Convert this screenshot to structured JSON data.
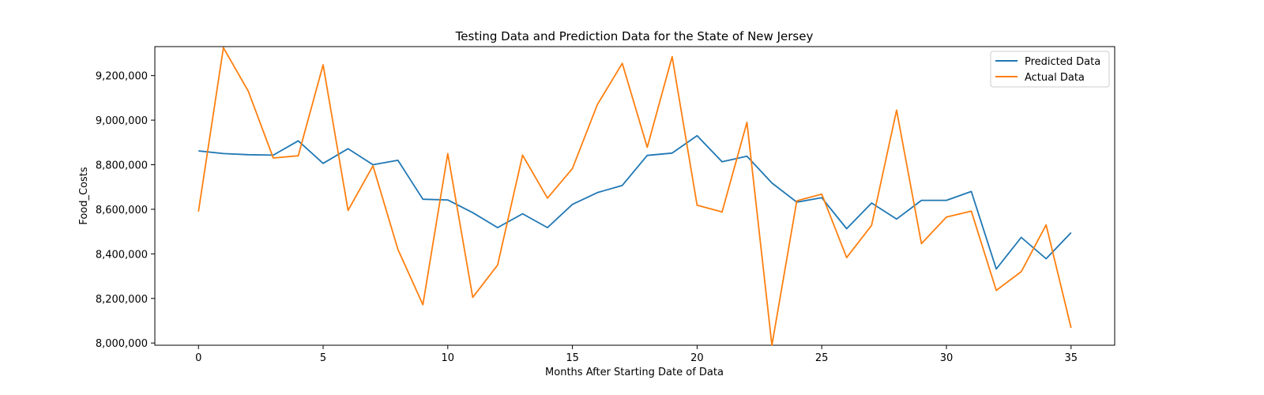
{
  "chart_data": {
    "type": "line",
    "title": "Testing Data and Prediction Data for the State of New Jersey",
    "xlabel": "Months After Starting Date of Data",
    "ylabel": "Food_Costs",
    "xlim": [
      -1.75,
      36.75
    ],
    "ylim": [
      7990000,
      9330000
    ],
    "x_ticks": [
      0,
      5,
      10,
      15,
      20,
      25,
      30,
      35
    ],
    "x_tick_labels": [
      "0",
      "5",
      "10",
      "15",
      "20",
      "25",
      "30",
      "35"
    ],
    "y_ticks": [
      8000000,
      8200000,
      8400000,
      8600000,
      8800000,
      9000000,
      9200000
    ],
    "y_tick_labels": [
      "8,000,000",
      "8,200,000",
      "8,400,000",
      "8,600,000",
      "8,800,000",
      "9,000,000",
      "9,200,000"
    ],
    "grid": false,
    "legend_position": "top-right",
    "x": [
      0,
      1,
      2,
      3,
      4,
      5,
      6,
      7,
      8,
      9,
      10,
      11,
      12,
      13,
      14,
      15,
      16,
      17,
      18,
      19,
      20,
      21,
      22,
      23,
      24,
      25,
      26,
      27,
      28,
      29,
      30,
      31,
      32,
      33,
      34,
      35
    ],
    "series": [
      {
        "name": "Predicted Data",
        "color": "#1f77b4",
        "values": [
          8862000,
          8850000,
          8845000,
          8843000,
          8907000,
          8806000,
          8872000,
          8800000,
          8820000,
          8645000,
          8642000,
          8585000,
          8518000,
          8580000,
          8518000,
          8622000,
          8675000,
          8707000,
          8842000,
          8852000,
          8930000,
          8813000,
          8838000,
          8718000,
          8632000,
          8652000,
          8513000,
          8628000,
          8556000,
          8640000,
          8640000,
          8680000,
          8332000,
          8474000,
          8378000,
          8495000
        ]
      },
      {
        "name": "Actual Data",
        "color": "#ff7f0e",
        "values": [
          8590000,
          9325000,
          9130000,
          8830000,
          8840000,
          9248000,
          8595000,
          8795000,
          8420000,
          8172000,
          8850000,
          8205000,
          8350000,
          8843000,
          8650000,
          8783000,
          9070000,
          9255000,
          8878000,
          9285000,
          8618000,
          8588000,
          8990000,
          7990000,
          8638000,
          8668000,
          8383000,
          8528000,
          9045000,
          8446000,
          8565000,
          8592000,
          8236000,
          8320000,
          8530000,
          8068000
        ]
      }
    ]
  }
}
